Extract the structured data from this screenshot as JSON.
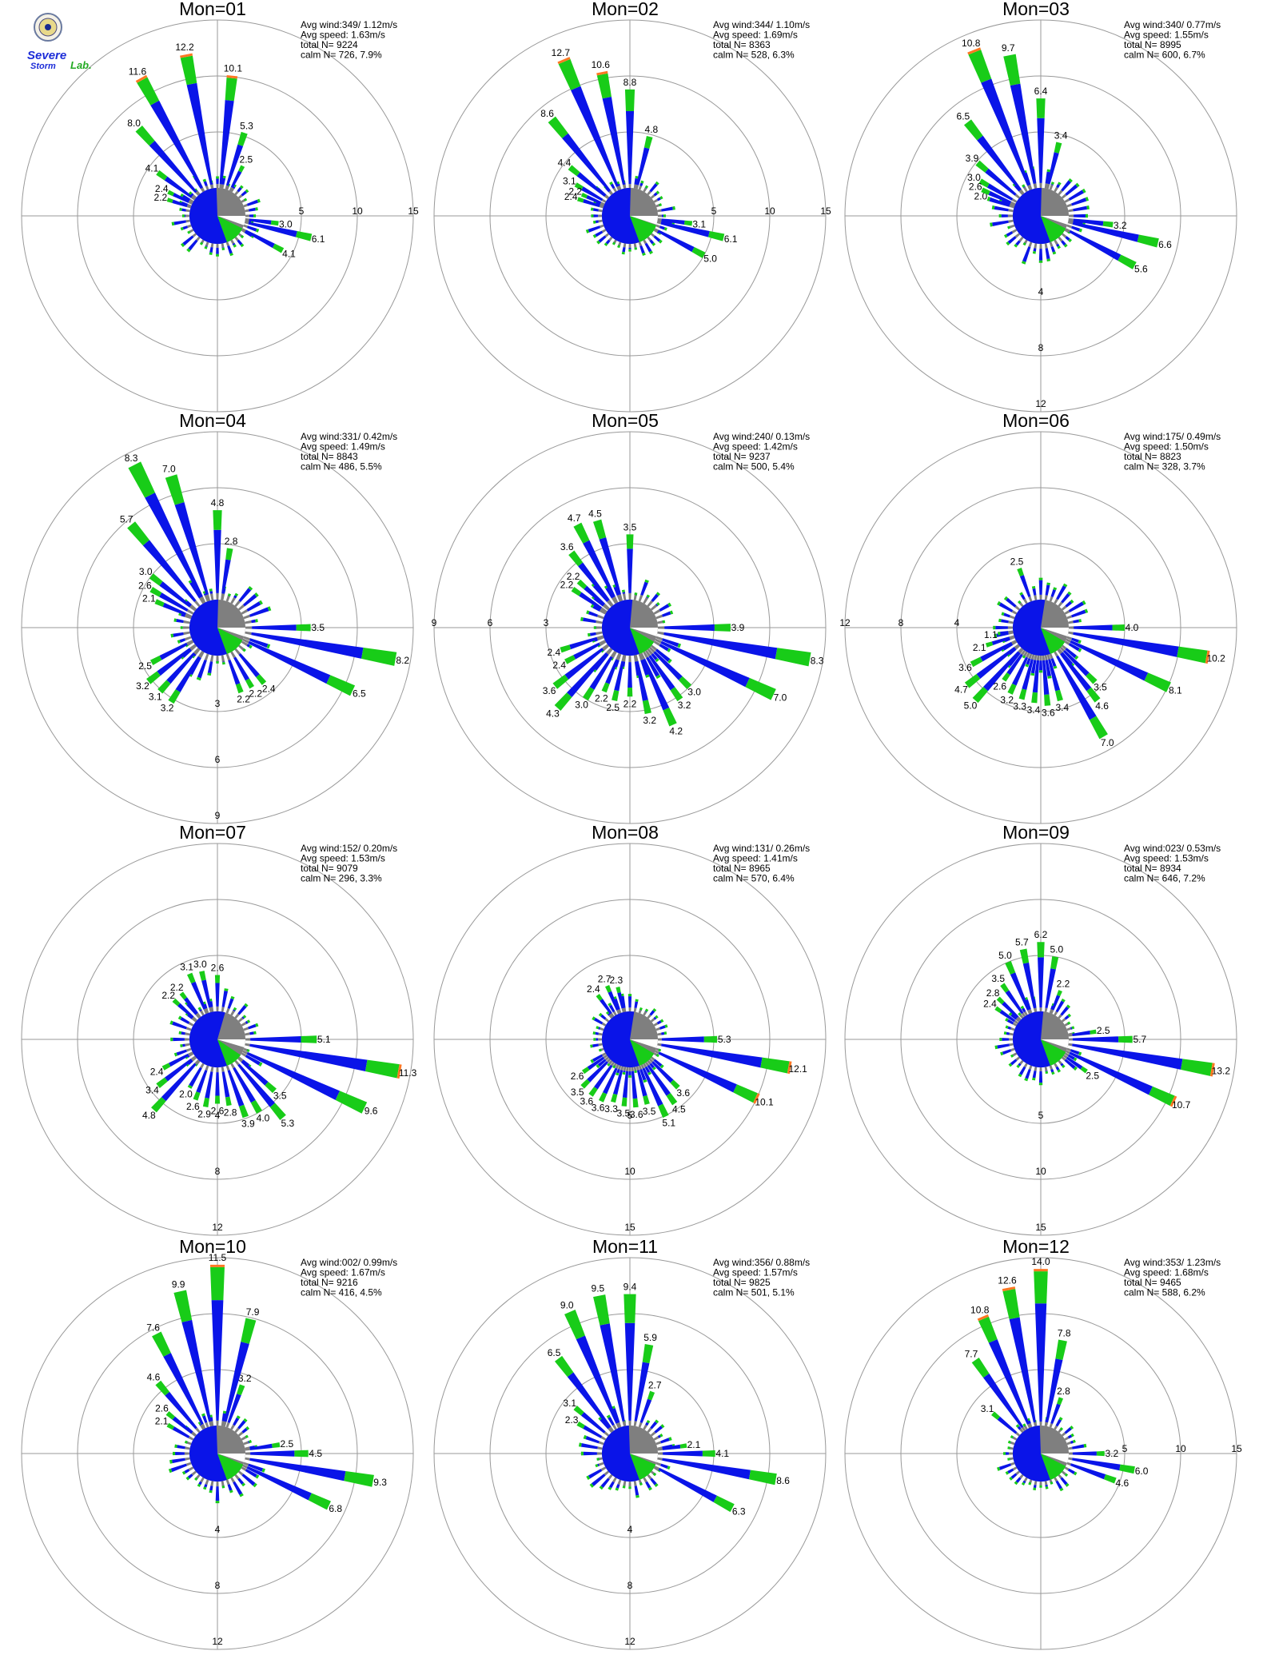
{
  "colors": {
    "calm": "#7f7f7f",
    "blue": "#0a14e8",
    "green": "#18cc18",
    "orange": "#ff7722",
    "grid": "#999999"
  },
  "logo": {
    "line1": "Severe",
    "line2": "Storm",
    "line3": "Lab."
  },
  "chart_data": [
    {
      "type": "wind-rose",
      "title": "Mon=01",
      "stats": {
        "avg_wind": "Avg wind:349/ 1.12m/s",
        "avg_speed": "Avg speed: 1.63m/s",
        "total": "total N=      9224",
        "calm": "calm N=    726,   7.9%"
      },
      "ring_labels": [
        "5",
        "10",
        "15"
      ],
      "ring_axis": "east",
      "rmax": 15,
      "calm_frac": {
        "blue": 0.55,
        "green": 0.12,
        "white": 0.13
      },
      "labels": [
        [
          "349",
          "12.2"
        ],
        [
          "6",
          "10.1"
        ],
        [
          "18",
          "5.3"
        ],
        [
          "27",
          "2.5"
        ],
        [
          "331",
          "11.6"
        ],
        [
          "318",
          "8.0"
        ],
        [
          "306",
          "4.1"
        ],
        [
          "296",
          "2.4"
        ],
        [
          "288",
          "2.2"
        ],
        [
          "97",
          "3.0"
        ],
        [
          "103",
          "6.1"
        ],
        [
          "118",
          "4.1"
        ]
      ]
    },
    {
      "type": "wind-rose",
      "title": "Mon=02",
      "stats": {
        "avg_wind": "Avg wind:344/ 1.10m/s",
        "avg_speed": "Avg speed: 1.69m/s",
        "total": "total N=      8363",
        "calm": "calm N=    528,   6.3%"
      },
      "ring_labels": [
        "5",
        "10",
        "15"
      ],
      "ring_axis": "east",
      "rmax": 15,
      "calm_frac": {
        "blue": 0.56,
        "green": 0.14,
        "white": 0.12
      },
      "labels": [
        [
          "337",
          "12.7"
        ],
        [
          "349",
          "10.6"
        ],
        [
          "0",
          "8.8"
        ],
        [
          "14",
          "4.8"
        ],
        [
          "321",
          "8.6"
        ],
        [
          "309",
          "4.4"
        ],
        [
          "300",
          "3.1"
        ],
        [
          "294",
          "2.2"
        ],
        [
          "288",
          "2.4"
        ],
        [
          "97",
          "3.1"
        ],
        [
          "103",
          "6.1"
        ],
        [
          "118",
          "5.0"
        ]
      ]
    },
    {
      "type": "wind-rose",
      "title": "Mon=03",
      "stats": {
        "avg_wind": "Avg wind:340/ 0.77m/s",
        "avg_speed": "Avg speed: 1.55m/s",
        "total": "total N=      8995",
        "calm": "calm N=    600,   6.7%"
      },
      "ring_labels": [
        "4",
        "8",
        "12"
      ],
      "ring_axis": "south",
      "rmax": 12,
      "calm_frac": {
        "blue": 0.56,
        "green": 0.12,
        "white": 0.12
      },
      "labels": [
        [
          "338",
          "10.8"
        ],
        [
          "349",
          "9.7"
        ],
        [
          "0",
          "6.4"
        ],
        [
          "14",
          "3.4"
        ],
        [
          "322",
          "6.5"
        ],
        [
          "310",
          "3.9"
        ],
        [
          "300",
          "3.0"
        ],
        [
          "294",
          "2.6"
        ],
        [
          "288",
          "2.0"
        ],
        [
          "97",
          "3.2"
        ],
        [
          "103",
          "6.6"
        ],
        [
          "118",
          "5.6"
        ]
      ]
    },
    {
      "type": "wind-rose",
      "title": "Mon=04",
      "stats": {
        "avg_wind": "Avg wind:331/ 0.42m/s",
        "avg_speed": "Avg speed: 1.49m/s",
        "total": "total N=      8843",
        "calm": "calm N=    486,   5.5%"
      },
      "ring_labels": [
        "3",
        "6",
        "9"
      ],
      "ring_axis": "south",
      "rmax": 9,
      "calm_frac": {
        "blue": 0.56,
        "green": 0.12,
        "white": 0.12
      },
      "labels": [
        [
          "333",
          "8.3"
        ],
        [
          "343",
          "7.0"
        ],
        [
          "0",
          "4.8"
        ],
        [
          "9",
          "2.8"
        ],
        [
          "320",
          "5.7"
        ],
        [
          "308",
          "3.0"
        ],
        [
          "300",
          "2.6"
        ],
        [
          "293",
          "2.1"
        ],
        [
          "90",
          "3.5"
        ],
        [
          "100",
          "8.2"
        ],
        [
          "115",
          "6.5"
        ],
        [
          "140",
          "2.4"
        ],
        [
          "150",
          "2.2"
        ],
        [
          "160",
          "2.2"
        ],
        [
          "242",
          "2.5"
        ],
        [
          "232",
          "3.2"
        ],
        [
          "222",
          "3.1"
        ],
        [
          "212",
          "3.2"
        ]
      ]
    },
    {
      "type": "wind-rose",
      "title": "Mon=05",
      "stats": {
        "avg_wind": "Avg wind:240/ 0.13m/s",
        "avg_speed": "Avg speed: 1.42m/s",
        "total": "total N=      9237",
        "calm": "calm N=    500,   5.4%"
      },
      "ring_labels": [
        "3",
        "6",
        "9"
      ],
      "ring_axis": "west",
      "rmax": 9,
      "calm_frac": {
        "blue": 0.57,
        "green": 0.11,
        "white": 0.12
      },
      "labels": [
        [
          "333",
          "4.7"
        ],
        [
          "343",
          "4.5"
        ],
        [
          "0",
          "3.5"
        ],
        [
          "322",
          "3.6"
        ],
        [
          "312",
          "2.2"
        ],
        [
          "304",
          "2.2"
        ],
        [
          "90",
          "3.9"
        ],
        [
          "100",
          "8.3"
        ],
        [
          "115",
          "7.0"
        ],
        [
          "135",
          "3.0"
        ],
        [
          "145",
          "3.2"
        ],
        [
          "156",
          "4.2"
        ],
        [
          "168",
          "3.2"
        ],
        [
          "180",
          "2.2"
        ],
        [
          "192",
          "2.5"
        ],
        [
          "202",
          "2.2"
        ],
        [
          "212",
          "3.0"
        ],
        [
          "222",
          "4.3"
        ],
        [
          "232",
          "3.6"
        ],
        [
          "242",
          "2.4"
        ],
        [
          "252",
          "2.4"
        ]
      ]
    },
    {
      "type": "wind-rose",
      "title": "Mon=06",
      "stats": {
        "avg_wind": "Avg wind:175/ 0.49m/s",
        "avg_speed": "Avg speed: 1.50m/s",
        "total": "total N=      8823",
        "calm": "calm N=    328,   3.7%"
      },
      "ring_labels": [
        "4",
        "8",
        "12"
      ],
      "ring_axis": "west",
      "rmax": 12,
      "calm_frac": {
        "blue": 0.58,
        "green": 0.11,
        "white": 0.12
      },
      "labels": [
        [
          "340",
          "2.5"
        ],
        [
          "90",
          "4.0"
        ],
        [
          "100",
          "10.2"
        ],
        [
          "115",
          "8.1"
        ],
        [
          "135",
          "3.5"
        ],
        [
          "142",
          "4.6"
        ],
        [
          "150",
          "7.0"
        ],
        [
          "165",
          "3.4"
        ],
        [
          "175",
          "3.6"
        ],
        [
          "185",
          "3.4"
        ],
        [
          "195",
          "3.3"
        ],
        [
          "205",
          "3.2"
        ],
        [
          "215",
          "2.6"
        ],
        [
          "222",
          "5.0"
        ],
        [
          "232",
          "4.7"
        ],
        [
          "242",
          "3.6"
        ],
        [
          "252",
          "2.1"
        ],
        [
          "262",
          "1.1"
        ]
      ]
    },
    {
      "type": "wind-rose",
      "title": "Mon=07",
      "stats": {
        "avg_wind": "Avg wind:152/ 0.20m/s",
        "avg_speed": "Avg speed: 1.53m/s",
        "total": "total N=      9079",
        "calm": "calm N=    296,   3.3%"
      },
      "ring_labels": [
        "4",
        "8",
        "12"
      ],
      "ring_axis": "south",
      "rmax": 12,
      "calm_frac": {
        "blue": 0.6,
        "green": 0.1,
        "white": 0.11
      },
      "labels": [
        [
          "337",
          "3.1"
        ],
        [
          "347",
          "3.0"
        ],
        [
          "0",
          "2.6"
        ],
        [
          "322",
          "2.2"
        ],
        [
          "312",
          "2.2"
        ],
        [
          "90",
          "5.1"
        ],
        [
          "100",
          "11.3"
        ],
        [
          "115",
          "9.6"
        ],
        [
          "132",
          "3.5"
        ],
        [
          "140",
          "5.3"
        ],
        [
          "150",
          "4.0"
        ],
        [
          "160",
          "3.9"
        ],
        [
          "170",
          "2.8"
        ],
        [
          "180",
          "2.6"
        ],
        [
          "190",
          "2.9"
        ],
        [
          "200",
          "2.6"
        ],
        [
          "210",
          "2.0"
        ],
        [
          "222",
          "4.8"
        ],
        [
          "232",
          "3.4"
        ],
        [
          "242",
          "2.4"
        ]
      ]
    },
    {
      "type": "wind-rose",
      "title": "Mon=08",
      "stats": {
        "avg_wind": "Avg wind:131/ 0.26m/s",
        "avg_speed": "Avg speed: 1.41m/s",
        "total": "total N=      8965",
        "calm": "calm N=    570,   6.4%"
      },
      "ring_labels": [
        "5",
        "10",
        "15"
      ],
      "ring_axis": "south",
      "rmax": 15,
      "calm_frac": {
        "blue": 0.58,
        "green": 0.11,
        "white": 0.12
      },
      "labels": [
        [
          "337",
          "2.7"
        ],
        [
          "347",
          "2.3"
        ],
        [
          "324",
          "2.4"
        ],
        [
          "90",
          "5.3"
        ],
        [
          "100",
          "12.1"
        ],
        [
          "115",
          "10.1"
        ],
        [
          "135",
          "3.6"
        ],
        [
          "145",
          "4.5"
        ],
        [
          "155",
          "5.1"
        ],
        [
          "165",
          "3.5"
        ],
        [
          "175",
          "3.6"
        ],
        [
          "185",
          "3.5"
        ],
        [
          "195",
          "3.3"
        ],
        [
          "205",
          "3.6"
        ],
        [
          "215",
          "3.6"
        ],
        [
          "225",
          "3.5"
        ],
        [
          "235",
          "2.6"
        ]
      ]
    },
    {
      "type": "wind-rose",
      "title": "Mon=09",
      "stats": {
        "avg_wind": "Avg wind:023/ 0.53m/s",
        "avg_speed": "Avg speed: 1.53m/s",
        "total": "total N=      8934",
        "calm": "calm N=    646,   7.2%"
      },
      "ring_labels": [
        "5",
        "10",
        "15"
      ],
      "ring_axis": "south",
      "rmax": 15,
      "calm_frac": {
        "blue": 0.57,
        "green": 0.12,
        "white": 0.12
      },
      "labels": [
        [
          "0",
          "6.2"
        ],
        [
          "349",
          "5.7"
        ],
        [
          "10",
          "5.0"
        ],
        [
          "337",
          "5.0"
        ],
        [
          "325",
          "3.5"
        ],
        [
          "314",
          "2.8"
        ],
        [
          "305",
          "2.4"
        ],
        [
          "22",
          "2.2"
        ],
        [
          "82",
          "2.5"
        ],
        [
          "90",
          "5.7"
        ],
        [
          "100",
          "13.2"
        ],
        [
          "115",
          "10.7"
        ],
        [
          "125",
          "2.5"
        ]
      ]
    },
    {
      "type": "wind-rose",
      "title": "Mon=10",
      "stats": {
        "avg_wind": "Avg wind:002/ 0.99m/s",
        "avg_speed": "Avg speed: 1.67m/s",
        "total": "total N=      9216",
        "calm": "calm N=    416,   4.5%"
      },
      "ring_labels": [
        "4",
        "8",
        "12"
      ],
      "ring_axis": "south",
      "rmax": 12,
      "calm_frac": {
        "blue": 0.55,
        "green": 0.13,
        "white": 0.12
      },
      "labels": [
        [
          "0",
          "11.5"
        ],
        [
          "347",
          "9.9"
        ],
        [
          "14",
          "7.9"
        ],
        [
          "333",
          "7.6"
        ],
        [
          "320",
          "4.6"
        ],
        [
          "309",
          "2.6"
        ],
        [
          "300",
          "2.1"
        ],
        [
          "20",
          "3.2"
        ],
        [
          "82",
          "2.5"
        ],
        [
          "90",
          "4.5"
        ],
        [
          "100",
          "9.3"
        ],
        [
          "115",
          "6.8"
        ]
      ]
    },
    {
      "type": "wind-rose",
      "title": "Mon=11",
      "stats": {
        "avg_wind": "Avg wind:356/ 0.88m/s",
        "avg_speed": "Avg speed: 1.57m/s",
        "total": "total N=      9825",
        "calm": "calm N=    501,   5.1%"
      },
      "ring_labels": [
        "4",
        "8",
        "12"
      ],
      "ring_axis": "south",
      "rmax": 12,
      "calm_frac": {
        "blue": 0.55,
        "green": 0.13,
        "white": 0.12
      },
      "labels": [
        [
          "349",
          "9.5"
        ],
        [
          "0",
          "9.4"
        ],
        [
          "337",
          "9.0"
        ],
        [
          "10",
          "5.9"
        ],
        [
          "323",
          "6.5"
        ],
        [
          "310",
          "3.1"
        ],
        [
          "300",
          "2.3"
        ],
        [
          "20",
          "2.7"
        ],
        [
          "82",
          "2.1"
        ],
        [
          "90",
          "4.1"
        ],
        [
          "100",
          "8.6"
        ],
        [
          "118",
          "6.3"
        ]
      ]
    },
    {
      "type": "wind-rose",
      "title": "Mon=12",
      "stats": {
        "avg_wind": "Avg wind:353/ 1.23m/s",
        "avg_speed": "Avg speed: 1.68m/s",
        "total": "total N=      9465",
        "calm": "calm N=    588,   6.2%"
      },
      "ring_labels": [
        "5",
        "10",
        "15"
      ],
      "ring_axis": "east",
      "rmax": 15,
      "calm_frac": {
        "blue": 0.55,
        "green": 0.12,
        "white": 0.13
      },
      "labels": [
        [
          "0",
          "14.0"
        ],
        [
          "349",
          "12.6"
        ],
        [
          "337",
          "10.8"
        ],
        [
          "11",
          "7.8"
        ],
        [
          "325",
          "7.7"
        ],
        [
          "20",
          "2.8"
        ],
        [
          "310",
          "3.1"
        ],
        [
          "90",
          "3.2"
        ],
        [
          "100",
          "6.0"
        ],
        [
          "110",
          "4.6"
        ]
      ]
    }
  ]
}
